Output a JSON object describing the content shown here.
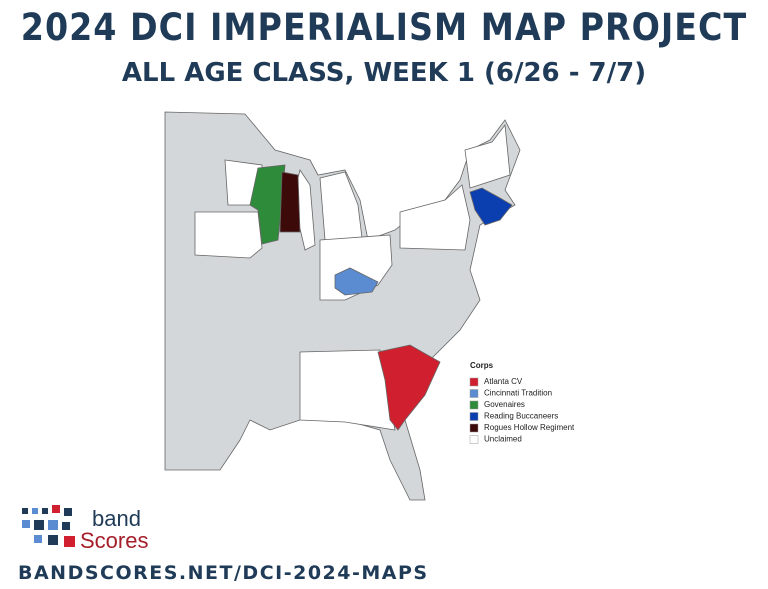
{
  "header": {
    "title": "2024 DCI IMPERIALISM MAP PROJECT",
    "subtitle": "ALL AGE CLASS, WEEK 1 (6/26 - 7/7)"
  },
  "legend": {
    "title": "Corps",
    "items": [
      {
        "label": "Atlanta CV",
        "color": "#d0202f"
      },
      {
        "label": "Cincinnati Tradition",
        "color": "#5b8bd0"
      },
      {
        "label": "Govenaires",
        "color": "#2e8b3a"
      },
      {
        "label": "Reading Buccaneers",
        "color": "#0b3fb0"
      },
      {
        "label": "Rogues Hollow Regiment",
        "color": "#3d0a0a"
      },
      {
        "label": "Unclaimed",
        "color": "#ffffff"
      }
    ]
  },
  "logo": {
    "line1": "band",
    "line2": "Scores"
  },
  "footer": {
    "url": "BANDSCORES.NET/DCI-2024-MAPS"
  }
}
